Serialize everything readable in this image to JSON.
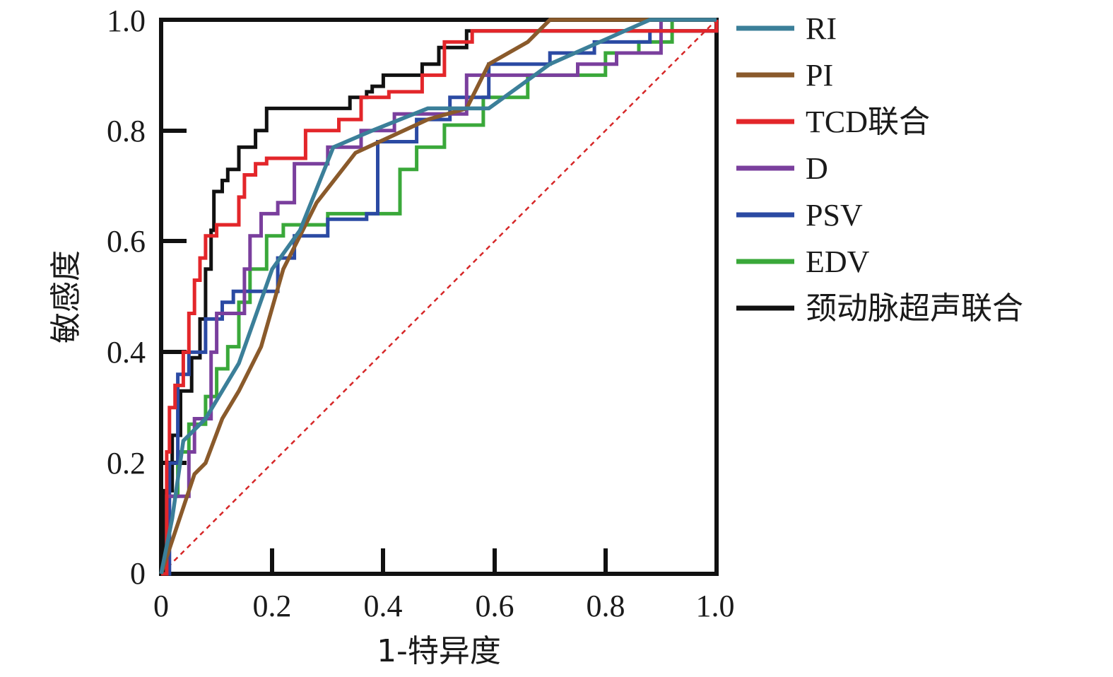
{
  "chart_data": {
    "type": "line",
    "title": "",
    "xlabel": "1-特异度",
    "ylabel": "敏感度",
    "xlim": [
      0,
      1.0
    ],
    "ylim": [
      0,
      1.0
    ],
    "x_ticks": [
      "0",
      "0.2",
      "0.4",
      "0.6",
      "0.8",
      "1.0"
    ],
    "y_ticks": [
      "0",
      "0.2",
      "0.4",
      "0.6",
      "0.8",
      "1.0"
    ],
    "grid": false,
    "legend_position": "right",
    "reference_line": {
      "name": "diagonal",
      "color": "#d62728",
      "style": "dashed",
      "points": [
        [
          0,
          0
        ],
        [
          1,
          1
        ]
      ]
    },
    "series": [
      {
        "name": "RI",
        "color": "#3b7f99",
        "step": false,
        "points": [
          [
            0,
            0
          ],
          [
            0.02,
            0.1
          ],
          [
            0.04,
            0.24
          ],
          [
            0.08,
            0.28
          ],
          [
            0.14,
            0.38
          ],
          [
            0.2,
            0.55
          ],
          [
            0.25,
            0.62
          ],
          [
            0.31,
            0.77
          ],
          [
            0.38,
            0.8
          ],
          [
            0.48,
            0.84
          ],
          [
            0.59,
            0.84
          ],
          [
            0.7,
            0.92
          ],
          [
            0.88,
            1.0
          ],
          [
            1.0,
            1.0
          ]
        ]
      },
      {
        "name": "PI",
        "color": "#8a5a2b",
        "step": false,
        "points": [
          [
            0,
            0
          ],
          [
            0.02,
            0.06
          ],
          [
            0.06,
            0.18
          ],
          [
            0.08,
            0.2
          ],
          [
            0.11,
            0.28
          ],
          [
            0.14,
            0.33
          ],
          [
            0.18,
            0.41
          ],
          [
            0.22,
            0.55
          ],
          [
            0.28,
            0.67
          ],
          [
            0.35,
            0.76
          ],
          [
            0.48,
            0.82
          ],
          [
            0.55,
            0.84
          ],
          [
            0.59,
            0.92
          ],
          [
            0.66,
            0.96
          ],
          [
            0.7,
            1.0
          ],
          [
            1.0,
            1.0
          ]
        ]
      },
      {
        "name": "TCD联合",
        "color": "#e3262a",
        "step": true,
        "points": [
          [
            0,
            0
          ],
          [
            0.01,
            0.22
          ],
          [
            0.015,
            0.3
          ],
          [
            0.025,
            0.34
          ],
          [
            0.04,
            0.4
          ],
          [
            0.05,
            0.47
          ],
          [
            0.06,
            0.53
          ],
          [
            0.07,
            0.57
          ],
          [
            0.08,
            0.61
          ],
          [
            0.1,
            0.63
          ],
          [
            0.14,
            0.68
          ],
          [
            0.15,
            0.72
          ],
          [
            0.17,
            0.74
          ],
          [
            0.19,
            0.75
          ],
          [
            0.26,
            0.8
          ],
          [
            0.32,
            0.82
          ],
          [
            0.36,
            0.86
          ],
          [
            0.41,
            0.87
          ],
          [
            0.47,
            0.9
          ],
          [
            0.51,
            0.96
          ],
          [
            0.56,
            0.98
          ],
          [
            1.0,
            1.0
          ]
        ]
      },
      {
        "name": "D",
        "color": "#7a3f9d",
        "step": true,
        "points": [
          [
            0,
            0
          ],
          [
            0.01,
            0.14
          ],
          [
            0.05,
            0.22
          ],
          [
            0.06,
            0.28
          ],
          [
            0.09,
            0.4
          ],
          [
            0.1,
            0.47
          ],
          [
            0.15,
            0.55
          ],
          [
            0.16,
            0.61
          ],
          [
            0.18,
            0.65
          ],
          [
            0.21,
            0.67
          ],
          [
            0.24,
            0.74
          ],
          [
            0.3,
            0.77
          ],
          [
            0.36,
            0.8
          ],
          [
            0.42,
            0.83
          ],
          [
            0.55,
            0.9
          ],
          [
            0.65,
            0.9
          ],
          [
            0.75,
            0.92
          ],
          [
            0.82,
            0.94
          ],
          [
            0.9,
            1.0
          ],
          [
            1.0,
            1.0
          ]
        ]
      },
      {
        "name": "PSV",
        "color": "#2b4aa3",
        "step": true,
        "points": [
          [
            0,
            0
          ],
          [
            0.015,
            0.2
          ],
          [
            0.03,
            0.36
          ],
          [
            0.05,
            0.4
          ],
          [
            0.08,
            0.46
          ],
          [
            0.11,
            0.49
          ],
          [
            0.13,
            0.51
          ],
          [
            0.19,
            0.51
          ],
          [
            0.21,
            0.57
          ],
          [
            0.24,
            0.61
          ],
          [
            0.3,
            0.64
          ],
          [
            0.37,
            0.65
          ],
          [
            0.39,
            0.78
          ],
          [
            0.46,
            0.82
          ],
          [
            0.52,
            0.86
          ],
          [
            0.59,
            0.92
          ],
          [
            0.7,
            0.94
          ],
          [
            0.78,
            0.96
          ],
          [
            0.88,
            0.98
          ],
          [
            0.95,
            0.98
          ],
          [
            1.0,
            1.0
          ]
        ]
      },
      {
        "name": "EDV",
        "color": "#3aa83a",
        "step": true,
        "points": [
          [
            0,
            0
          ],
          [
            0.01,
            0.14
          ],
          [
            0.03,
            0.22
          ],
          [
            0.05,
            0.27
          ],
          [
            0.08,
            0.32
          ],
          [
            0.1,
            0.37
          ],
          [
            0.12,
            0.41
          ],
          [
            0.14,
            0.49
          ],
          [
            0.16,
            0.55
          ],
          [
            0.19,
            0.61
          ],
          [
            0.22,
            0.63
          ],
          [
            0.3,
            0.65
          ],
          [
            0.38,
            0.65
          ],
          [
            0.43,
            0.73
          ],
          [
            0.46,
            0.77
          ],
          [
            0.51,
            0.81
          ],
          [
            0.58,
            0.86
          ],
          [
            0.66,
            0.9
          ],
          [
            0.8,
            0.94
          ],
          [
            0.86,
            0.96
          ],
          [
            0.92,
            1.0
          ],
          [
            1.0,
            1.0
          ]
        ]
      },
      {
        "name": "颈动脉超声联合",
        "color": "#111111",
        "step": true,
        "points": [
          [
            0,
            0
          ],
          [
            0.005,
            0.15
          ],
          [
            0.02,
            0.25
          ],
          [
            0.035,
            0.33
          ],
          [
            0.055,
            0.39
          ],
          [
            0.07,
            0.46
          ],
          [
            0.08,
            0.55
          ],
          [
            0.09,
            0.62
          ],
          [
            0.095,
            0.69
          ],
          [
            0.11,
            0.71
          ],
          [
            0.12,
            0.73
          ],
          [
            0.14,
            0.77
          ],
          [
            0.17,
            0.8
          ],
          [
            0.19,
            0.84
          ],
          [
            0.34,
            0.86
          ],
          [
            0.37,
            0.87
          ],
          [
            0.38,
            0.88
          ],
          [
            0.4,
            0.9
          ],
          [
            0.47,
            0.92
          ],
          [
            0.5,
            0.95
          ],
          [
            0.55,
            0.98
          ],
          [
            0.6,
            0.98
          ],
          [
            1.0,
            1.0
          ]
        ]
      }
    ]
  }
}
